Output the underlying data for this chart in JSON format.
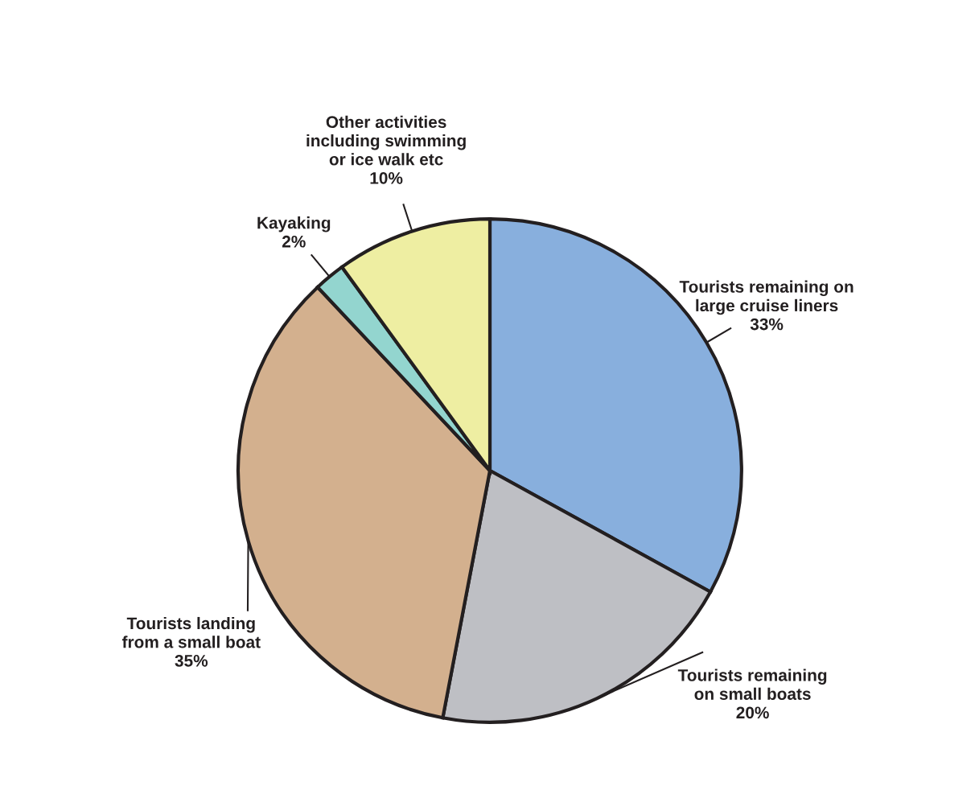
{
  "chart_data": {
    "type": "pie",
    "categories": [
      "Tourists remaining on\nlarge cruise liners",
      "Tourists remaining\non small boats",
      "Tourists landing\nfrom a small boat",
      "Kayaking",
      "Other activities\nincluding swimming\nor ice walk etc"
    ],
    "values": [
      33,
      20,
      35,
      2,
      10
    ],
    "value_labels": [
      "33%",
      "20%",
      "35%",
      "2%",
      "10%"
    ],
    "colors": [
      "#88afdd",
      "#bebfc4",
      "#d3b08e",
      "#93d5cf",
      "#eeeea2"
    ]
  }
}
